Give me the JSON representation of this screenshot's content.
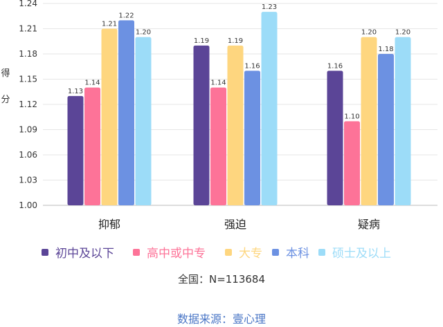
{
  "chart_data": {
    "type": "bar",
    "title": "",
    "xlabel": "",
    "ylabel": "得分",
    "ylim": [
      1.0,
      1.24
    ],
    "yticks": [
      "1.00",
      "1.03",
      "1.06",
      "1.09",
      "1.12",
      "1.15",
      "1.18",
      "1.21",
      "1.24"
    ],
    "grid": true,
    "legend_position": "bottom",
    "categories": [
      "抑郁",
      "强迫",
      "疑病"
    ],
    "series": [
      {
        "name": "初中及以下",
        "color": "#5b4597",
        "values": [
          1.13,
          1.19,
          1.16
        ],
        "labels": [
          "1.13",
          "1.19",
          "1.16"
        ]
      },
      {
        "name": "高中或中专",
        "color": "#fd7398",
        "values": [
          1.14,
          1.14,
          1.1
        ],
        "labels": [
          "1.14",
          "1.14",
          "1.10"
        ]
      },
      {
        "name": "大专",
        "color": "#fed67f",
        "values": [
          1.21,
          1.19,
          1.2
        ],
        "labels": [
          "1.21",
          "1.19",
          "1.20"
        ]
      },
      {
        "name": "本科",
        "color": "#6c91e2",
        "values": [
          1.22,
          1.16,
          1.18
        ],
        "labels": [
          "1.22",
          "1.16",
          "1.18"
        ]
      },
      {
        "name": "硕士及以上",
        "color": "#9cdcf8",
        "values": [
          1.2,
          1.23,
          1.2
        ],
        "labels": [
          "1.20",
          "1.23",
          "1.20"
        ]
      }
    ]
  },
  "note": "全国：N=113684",
  "source": "数据来源：壹心理",
  "colors": {
    "grid": "#e6e6e6",
    "axis": "#bbbbbb",
    "source_text": "#4a76c6"
  }
}
